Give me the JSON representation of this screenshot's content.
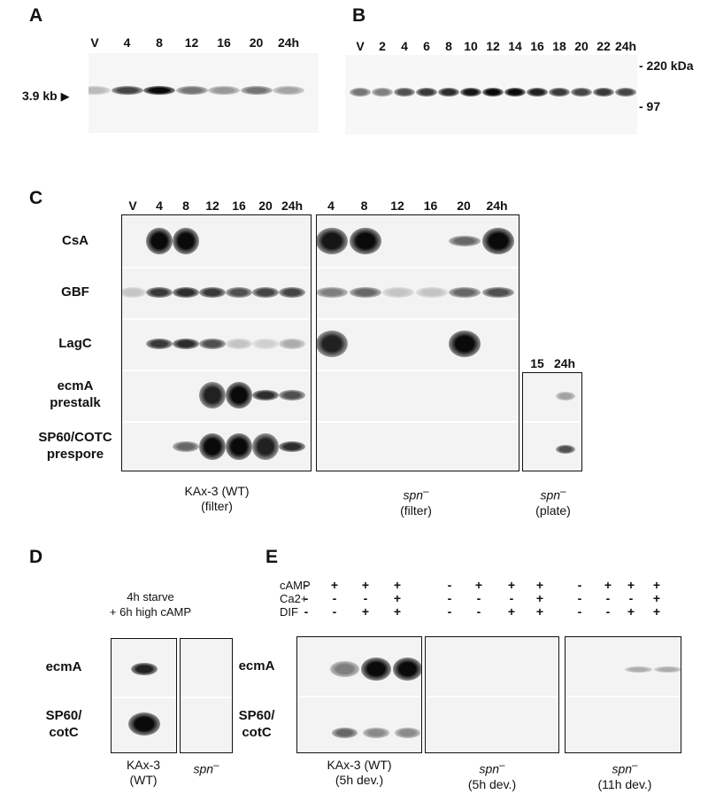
{
  "panelA": {
    "label": "A",
    "lanes": [
      "V",
      "4",
      "8",
      "12",
      "16",
      "20",
      "24h"
    ],
    "size_marker": "3.9 kb",
    "band_intensity": [
      0.25,
      0.75,
      1.0,
      0.55,
      0.4,
      0.55,
      0.35
    ]
  },
  "panelB": {
    "label": "B",
    "lanes": [
      "V",
      "2",
      "4",
      "6",
      "8",
      "10",
      "12",
      "14",
      "16",
      "18",
      "20",
      "22",
      "24h"
    ],
    "marker_top": "- 220 kDa",
    "marker_bottom": "- 97",
    "band_intensity": [
      0.55,
      0.5,
      0.7,
      0.8,
      0.85,
      0.95,
      1.0,
      1.0,
      0.9,
      0.8,
      0.75,
      0.8,
      0.75
    ]
  },
  "panelC": {
    "label": "C",
    "wt_lanes": [
      "V",
      "4",
      "8",
      "12",
      "16",
      "20",
      "24h"
    ],
    "spn_lanes": [
      "4",
      "8",
      "12",
      "16",
      "20",
      "24h"
    ],
    "plate_lanes": [
      "15",
      "24h"
    ],
    "rows": [
      {
        "label": "CsA"
      },
      {
        "label": "GBF"
      },
      {
        "label": "LagC"
      },
      {
        "label": "ecmA\nprestalk"
      },
      {
        "label": "SP60/COTC\nprespore"
      }
    ],
    "wt_bands": [
      [
        0,
        1.0,
        1.0,
        0,
        0,
        0,
        0
      ],
      [
        0.2,
        0.8,
        0.85,
        0.8,
        0.7,
        0.75,
        0.75
      ],
      [
        0,
        0.8,
        0.85,
        0.7,
        0.2,
        0.15,
        0.3
      ],
      [
        0,
        0,
        0,
        0.9,
        1.0,
        0.85,
        0.7
      ],
      [
        0,
        0,
        0.6,
        1.0,
        1.0,
        0.9,
        0.85
      ]
    ],
    "spn_bands": [
      [
        0.95,
        1.0,
        0,
        0,
        0.6,
        1.0
      ],
      [
        0.5,
        0.6,
        0.2,
        0.2,
        0.6,
        0.7
      ],
      [
        0.9,
        0,
        0,
        0,
        1.0,
        0
      ],
      [
        0,
        0,
        0,
        0,
        0,
        0
      ],
      [
        0,
        0,
        0,
        0,
        0,
        0
      ]
    ],
    "plate_bands": [
      [
        0,
        0.35
      ],
      [
        0,
        0.7
      ]
    ],
    "caption_wt_line1": "KAx-3 (WT)",
    "caption_wt_line2": "(filter)",
    "caption_spn_name": "spn",
    "caption_spn_line2": "(filter)",
    "caption_plate_name": "spn",
    "caption_plate_line2": "(plate)"
  },
  "panelD": {
    "label": "D",
    "condition_line1": "4h starve",
    "condition_line2": "+ 6h high cAMP",
    "rows": [
      {
        "label": "ecmA"
      },
      {
        "label": "SP60/\ncotC"
      }
    ],
    "caption_wt_line1": "KAx-3",
    "caption_wt_line2": "(WT)",
    "caption_spn_name": "spn"
  },
  "panelE": {
    "label": "E",
    "conditions": [
      "cAMP",
      "Ca2+",
      "DIF"
    ],
    "signs": [
      [
        "-",
        "+",
        "+",
        "+"
      ],
      [
        "-",
        "-",
        "-",
        "+"
      ],
      [
        "-",
        "-",
        "+",
        "+"
      ]
    ],
    "rows": [
      {
        "label": "ecmA"
      },
      {
        "label": "SP60/\ncotC"
      }
    ],
    "blots": [
      {
        "ecmA": [
          0,
          0.5,
          1.0,
          1.0
        ],
        "sp60": [
          0,
          0.6,
          0.45,
          0.45
        ]
      },
      {
        "ecmA": [
          0,
          0,
          0,
          0
        ],
        "sp60": [
          0,
          0,
          0,
          0
        ]
      },
      {
        "ecmA": [
          0,
          0,
          0.3,
          0.3
        ],
        "sp60": [
          0,
          0,
          0,
          0
        ]
      }
    ],
    "captions": [
      {
        "line1": "KAx-3 (WT)",
        "line2": "(5h dev.)"
      },
      {
        "name": "spn",
        "line2": "(5h dev.)"
      },
      {
        "name": "spn",
        "line2": "(11h dev.)"
      }
    ]
  }
}
